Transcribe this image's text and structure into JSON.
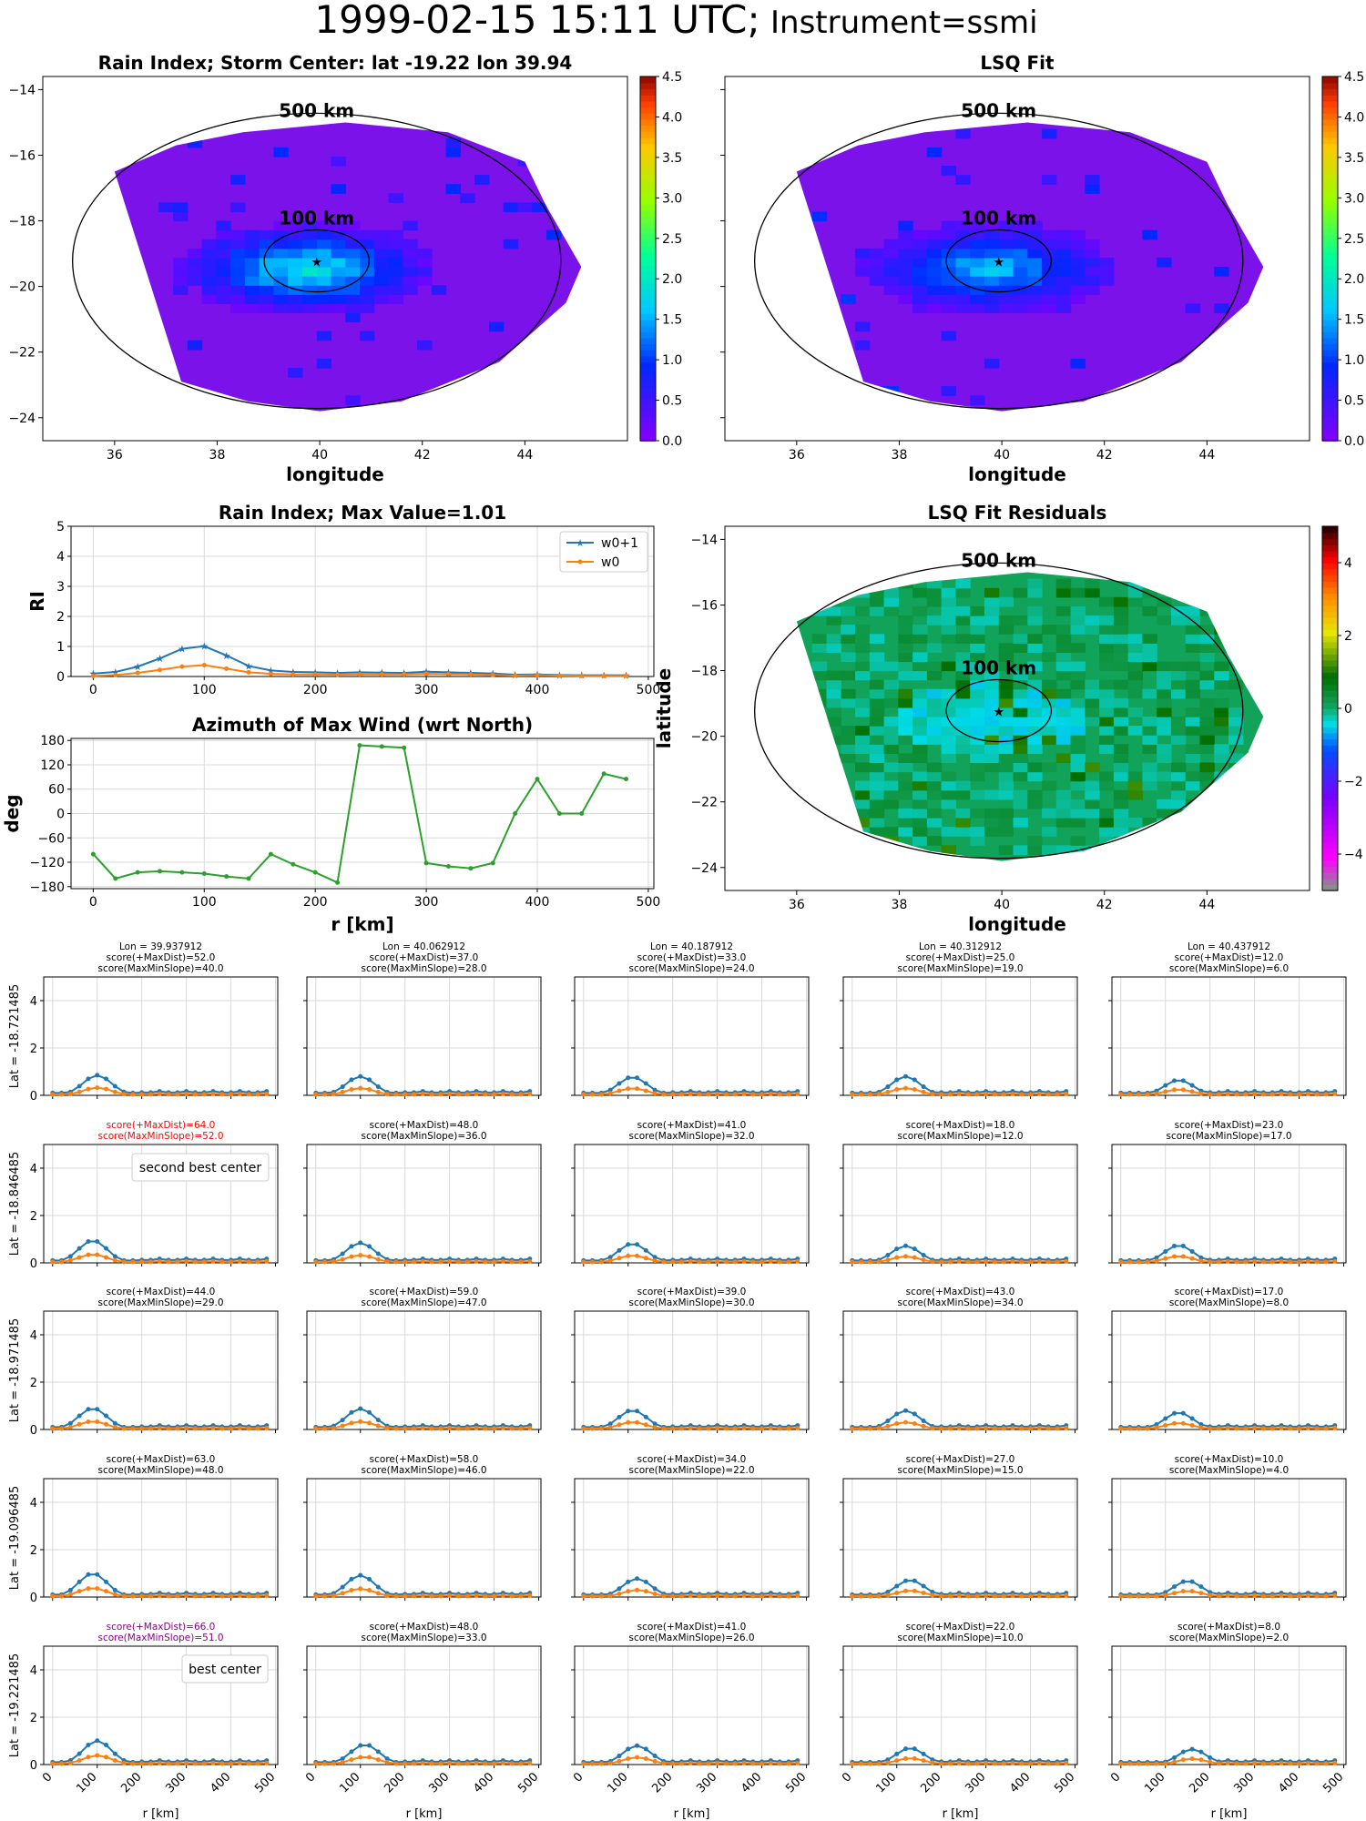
{
  "figure": {
    "title_main": "1999-02-15 15:11 UTC;",
    "title_instrument": "Instrument=ssmi"
  },
  "colors": {
    "w0p1": "#1f77b4",
    "w0": "#ff7f0e",
    "azimuth": "#2ca02c",
    "grid": "#d9d9d9",
    "map_bg": "#7b12ea",
    "residual_bg": "#12a35a",
    "highlight_red": "#ff0000",
    "highlight_purple": "#8b008b"
  },
  "chart_data": [
    {
      "id": "rain_index_map",
      "type": "heatmap",
      "title": "Rain Index; Storm Center: lat -19.22 lon 39.94",
      "xlabel": "longitude",
      "ylabel": "latitude",
      "xlim": [
        34.6,
        46.0
      ],
      "ylim": [
        -24.7,
        -13.6
      ],
      "xticks": [
        36,
        38,
        40,
        42,
        44
      ],
      "yticks": [
        -24,
        -22,
        -20,
        -18,
        -16,
        -14
      ],
      "colorbar": {
        "ticks": [
          "0.0",
          "0.5",
          "1.0",
          "1.5",
          "2.0",
          "2.5",
          "3.0",
          "3.5",
          "4.0",
          "4.5"
        ],
        "range": [
          0,
          4.5
        ],
        "colormap": "rainbow"
      },
      "center": {
        "lon": 39.94,
        "lat": -19.22
      },
      "circles": [
        {
          "label": "500 km",
          "radius_deg_lon": 4.7,
          "radius_deg_lat": 4.5
        },
        {
          "label": "100 km",
          "radius_deg_lon": 0.95,
          "radius_deg_lat": 0.9
        }
      ],
      "max_value": 2.0
    },
    {
      "id": "lsq_fit_map",
      "type": "heatmap",
      "title": "LSQ Fit",
      "xlabel": "longitude",
      "ylabel": "",
      "xlim": [
        34.6,
        46.0
      ],
      "ylim": [
        -24.7,
        -13.6
      ],
      "xticks": [
        36,
        38,
        40,
        42,
        44
      ],
      "colorbar": {
        "ticks": [
          "0.0",
          "0.5",
          "1.0",
          "1.5",
          "2.0",
          "2.5",
          "3.0",
          "3.5",
          "4.0",
          "4.5"
        ],
        "range": [
          0,
          4.5
        ],
        "colormap": "rainbow"
      },
      "circles": [
        {
          "label": "500 km"
        },
        {
          "label": "100 km"
        }
      ]
    },
    {
      "id": "rain_index_profile",
      "type": "line",
      "title": "Rain Index; Max Value=1.01",
      "ylabel": "RI",
      "xlabel": "",
      "xlim": [
        -20,
        505
      ],
      "ylim": [
        0,
        5
      ],
      "xticks": [
        0,
        100,
        200,
        300,
        400,
        500
      ],
      "yticks": [
        0,
        1,
        2,
        3,
        4,
        5
      ],
      "legend": "top-right",
      "x": [
        0,
        20,
        40,
        60,
        80,
        100,
        120,
        140,
        160,
        180,
        200,
        220,
        240,
        260,
        280,
        300,
        320,
        340,
        360,
        380,
        400,
        420,
        440,
        460,
        480
      ],
      "series": [
        {
          "name": "w0+1",
          "values": [
            0.1,
            0.15,
            0.33,
            0.6,
            0.92,
            1.01,
            0.7,
            0.35,
            0.2,
            0.15,
            0.14,
            0.12,
            0.14,
            0.13,
            0.12,
            0.16,
            0.14,
            0.12,
            0.1,
            0.06,
            0.07,
            0.05,
            0.04,
            0.04,
            0.04
          ]
        },
        {
          "name": "w0",
          "values": [
            0.02,
            0.05,
            0.12,
            0.22,
            0.33,
            0.38,
            0.26,
            0.14,
            0.09,
            0.07,
            0.07,
            0.06,
            0.07,
            0.07,
            0.07,
            0.09,
            0.08,
            0.07,
            0.05,
            0.03,
            0.04,
            0.03,
            0.02,
            0.02,
            0.02
          ]
        }
      ]
    },
    {
      "id": "azimuth_max_wind",
      "type": "line",
      "title": "Azimuth of Max Wind (wrt North)",
      "ylabel": "deg",
      "xlabel": "r [km]",
      "xlim": [
        -20,
        505
      ],
      "ylim": [
        -185,
        185
      ],
      "xticks": [
        0,
        100,
        200,
        300,
        400,
        500
      ],
      "yticks": [
        -180,
        -120,
        -60,
        0,
        60,
        120,
        180
      ],
      "x": [
        0,
        20,
        40,
        60,
        80,
        100,
        120,
        140,
        160,
        180,
        200,
        220,
        240,
        260,
        280,
        300,
        320,
        340,
        360,
        380,
        400,
        420,
        440,
        460,
        480
      ],
      "values": [
        -100,
        -160,
        -145,
        -142,
        -145,
        -148,
        -155,
        -160,
        -100,
        -125,
        -145,
        -170,
        168,
        165,
        162,
        -122,
        -130,
        -135,
        -122,
        0,
        85,
        0,
        0,
        98,
        85
      ]
    },
    {
      "id": "lsq_fit_residuals",
      "type": "heatmap",
      "title": "LSQ Fit Residuals",
      "xlabel": "longitude",
      "ylabel": "latitude",
      "xlim": [
        34.6,
        46.0
      ],
      "ylim": [
        -24.7,
        -13.6
      ],
      "xticks": [
        36,
        38,
        40,
        42,
        44
      ],
      "yticks": [
        -24,
        -22,
        -20,
        -18,
        -16,
        -14
      ],
      "colorbar": {
        "ticks": [
          "−4",
          "−2",
          "0",
          "2",
          "4"
        ],
        "range": [
          -5,
          5
        ],
        "colormap": "residual"
      },
      "circles": [
        {
          "label": "500 km"
        },
        {
          "label": "100 km"
        }
      ]
    }
  ],
  "grid_panels": {
    "xlabel": "r [km]",
    "xticks": [
      0,
      100,
      200,
      300,
      400,
      500
    ],
    "yticks": [
      0,
      2,
      4
    ],
    "xlim": [
      -20,
      505
    ],
    "ylim": [
      0,
      5
    ],
    "x": [
      0,
      20,
      40,
      60,
      80,
      100,
      120,
      140,
      160,
      180,
      200,
      220,
      240,
      260,
      280,
      300,
      320,
      340,
      360,
      380,
      400,
      420,
      440,
      460,
      480
    ],
    "lons": [
      "Lon = 39.937912",
      "Lon = 40.062912",
      "Lon = 40.187912",
      "Lon = 40.312912",
      "Lon = 40.437912"
    ],
    "rows": [
      {
        "lat_label": "Lat = -18.721485",
        "cells": [
          {
            "score1": "score(+MaxDist)=52.0",
            "score2": "score(MaxMinSlope)=40.0",
            "peak": 0.85,
            "peak_r": 100
          },
          {
            "score1": "score(+MaxDist)=37.0",
            "score2": "score(MaxMinSlope)=28.0",
            "peak": 0.8,
            "peak_r": 100
          },
          {
            "score1": "score(+MaxDist)=33.0",
            "score2": "score(MaxMinSlope)=24.0",
            "peak": 0.78,
            "peak_r": 110
          },
          {
            "score1": "score(+MaxDist)=25.0",
            "score2": "score(MaxMinSlope)=19.0",
            "peak": 0.8,
            "peak_r": 120
          },
          {
            "score1": "score(+MaxDist)=12.0",
            "score2": "score(MaxMinSlope)=6.0",
            "peak": 0.65,
            "peak_r": 130
          }
        ]
      },
      {
        "lat_label": "Lat = -18.846485",
        "legend": "second best center",
        "cells": [
          {
            "score1": "score(+MaxDist)=64.0",
            "score2": "score(MaxMinSlope)=52.0",
            "peak": 0.95,
            "peak_r": 90,
            "highlight": "red",
            "note": "second best center"
          },
          {
            "score1": "score(+MaxDist)=48.0",
            "score2": "score(MaxMinSlope)=36.0",
            "peak": 0.85,
            "peak_r": 100
          },
          {
            "score1": "score(+MaxDist)=41.0",
            "score2": "score(MaxMinSlope)=32.0",
            "peak": 0.82,
            "peak_r": 110
          },
          {
            "score1": "score(+MaxDist)=18.0",
            "score2": "score(MaxMinSlope)=12.0",
            "peak": 0.72,
            "peak_r": 120
          },
          {
            "score1": "score(+MaxDist)=23.0",
            "score2": "score(MaxMinSlope)=17.0",
            "peak": 0.75,
            "peak_r": 130
          }
        ]
      },
      {
        "lat_label": "Lat = -18.971485",
        "cells": [
          {
            "score1": "score(+MaxDist)=44.0",
            "score2": "score(MaxMinSlope)=29.0",
            "peak": 0.9,
            "peak_r": 90
          },
          {
            "score1": "score(+MaxDist)=59.0",
            "score2": "score(MaxMinSlope)=47.0",
            "peak": 0.88,
            "peak_r": 100
          },
          {
            "score1": "score(+MaxDist)=39.0",
            "score2": "score(MaxMinSlope)=30.0",
            "peak": 0.82,
            "peak_r": 110
          },
          {
            "score1": "score(+MaxDist)=43.0",
            "score2": "score(MaxMinSlope)=34.0",
            "peak": 0.8,
            "peak_r": 120
          },
          {
            "score1": "score(+MaxDist)=17.0",
            "score2": "score(MaxMinSlope)=8.0",
            "peak": 0.72,
            "peak_r": 130
          }
        ]
      },
      {
        "lat_label": "Lat = -19.096485",
        "cells": [
          {
            "score1": "score(+MaxDist)=63.0",
            "score2": "score(MaxMinSlope)=48.0",
            "peak": 1.0,
            "peak_r": 90
          },
          {
            "score1": "score(+MaxDist)=58.0",
            "score2": "score(MaxMinSlope)=46.0",
            "peak": 0.92,
            "peak_r": 100
          },
          {
            "score1": "score(+MaxDist)=34.0",
            "score2": "score(MaxMinSlope)=22.0",
            "peak": 0.78,
            "peak_r": 120
          },
          {
            "score1": "score(+MaxDist)=27.0",
            "score2": "score(MaxMinSlope)=15.0",
            "peak": 0.72,
            "peak_r": 130
          },
          {
            "score1": "score(+MaxDist)=10.0",
            "score2": "score(MaxMinSlope)=4.0",
            "peak": 0.68,
            "peak_r": 150
          }
        ]
      },
      {
        "lat_label": "Lat = -19.221485",
        "legend": "best center",
        "cells": [
          {
            "score1": "score(+MaxDist)=66.0",
            "score2": "score(MaxMinSlope)=51.0",
            "peak": 1.01,
            "peak_r": 100,
            "highlight": "purple",
            "note": "best center"
          },
          {
            "score1": "score(+MaxDist)=48.0",
            "score2": "score(MaxMinSlope)=33.0",
            "peak": 0.85,
            "peak_r": 110
          },
          {
            "score1": "score(+MaxDist)=41.0",
            "score2": "score(MaxMinSlope)=26.0",
            "peak": 0.8,
            "peak_r": 120
          },
          {
            "score1": "score(+MaxDist)=22.0",
            "score2": "score(MaxMinSlope)=10.0",
            "peak": 0.7,
            "peak_r": 130
          },
          {
            "score1": "score(+MaxDist)=8.0",
            "score2": "score(MaxMinSlope)=2.0",
            "peak": 0.65,
            "peak_r": 160
          }
        ]
      }
    ]
  }
}
